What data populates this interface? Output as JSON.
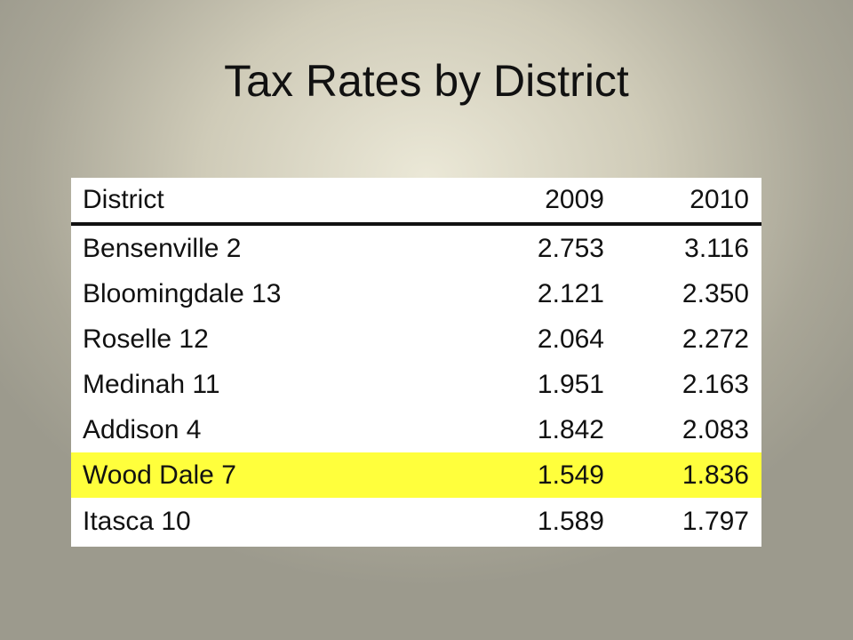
{
  "title": "Tax Rates by District",
  "table": {
    "headers": [
      "District",
      "2009",
      "2010"
    ],
    "rows": [
      [
        "Bensenville 2",
        "2.753",
        "3.116"
      ],
      [
        "Bloomingdale 13",
        "2.121",
        "2.350"
      ],
      [
        "Roselle 12",
        "2.064",
        "2.272"
      ],
      [
        "Medinah 11",
        "1.951",
        "2.163"
      ],
      [
        "Addison 4",
        "1.842",
        "2.083"
      ],
      [
        "Wood Dale 7",
        "1.549",
        "1.836"
      ],
      [
        "Itasca 10",
        "1.589",
        "1.797"
      ]
    ],
    "highlighted_row": "Wood Dale 7",
    "highlight_color": "#ffff3c"
  }
}
